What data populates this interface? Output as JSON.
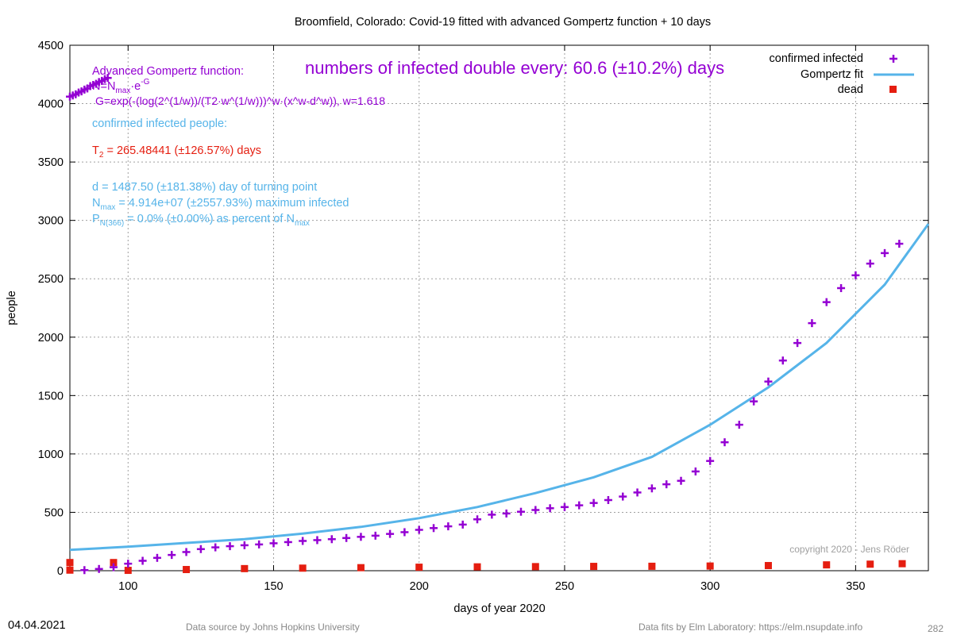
{
  "chart_data": {
    "type": "line",
    "title": "Broomfield,  Colorado: Covid-19 fitted with advanced Gompertz function + 10 days",
    "xlabel": "days of year 2020",
    "ylabel": "people",
    "xlim": [
      80,
      375
    ],
    "ylim": [
      0,
      4500
    ],
    "x_ticks": [
      100,
      150,
      200,
      250,
      300,
      350
    ],
    "y_ticks": [
      0,
      500,
      1000,
      1500,
      2000,
      2500,
      3000,
      3500,
      4000,
      4500
    ],
    "grid": true,
    "legend_position": "top-right",
    "legend": [
      {
        "label": "confirmed infected",
        "marker": "+",
        "color": "#9400d3"
      },
      {
        "label": "Gompertz fit",
        "marker": "line",
        "color": "#56b4e9"
      },
      {
        "label": "dead",
        "marker": "square",
        "color": "#e51e10"
      }
    ],
    "series": [
      {
        "name": "confirmed infected",
        "color": "#9400d3",
        "marker": "+",
        "points": [
          [
            80,
            4060
          ],
          [
            81,
            4070
          ],
          [
            82,
            4080
          ],
          [
            83,
            4095
          ],
          [
            84,
            4105
          ],
          [
            85,
            4120
          ],
          [
            86,
            4130
          ],
          [
            87,
            4150
          ],
          [
            88,
            4160
          ],
          [
            89,
            4170
          ],
          [
            90,
            4185
          ],
          [
            91,
            4195
          ],
          [
            92,
            4210
          ],
          [
            93,
            4220
          ],
          [
            85,
            5
          ],
          [
            90,
            15
          ],
          [
            95,
            30
          ],
          [
            100,
            60
          ],
          [
            105,
            85
          ],
          [
            110,
            110
          ],
          [
            115,
            135
          ],
          [
            120,
            160
          ],
          [
            125,
            185
          ],
          [
            130,
            200
          ],
          [
            135,
            210
          ],
          [
            140,
            218
          ],
          [
            145,
            225
          ],
          [
            150,
            235
          ],
          [
            155,
            245
          ],
          [
            160,
            255
          ],
          [
            165,
            262
          ],
          [
            170,
            270
          ],
          [
            175,
            280
          ],
          [
            180,
            290
          ],
          [
            185,
            300
          ],
          [
            190,
            315
          ],
          [
            195,
            330
          ],
          [
            200,
            350
          ],
          [
            205,
            365
          ],
          [
            210,
            380
          ],
          [
            215,
            395
          ],
          [
            220,
            440
          ],
          [
            225,
            480
          ],
          [
            230,
            490
          ],
          [
            235,
            505
          ],
          [
            240,
            520
          ],
          [
            245,
            535
          ],
          [
            250,
            545
          ],
          [
            255,
            560
          ],
          [
            260,
            580
          ],
          [
            265,
            605
          ],
          [
            270,
            635
          ],
          [
            275,
            670
          ],
          [
            280,
            705
          ],
          [
            285,
            740
          ],
          [
            290,
            770
          ],
          [
            295,
            850
          ],
          [
            300,
            940
          ],
          [
            305,
            1100
          ],
          [
            310,
            1250
          ],
          [
            315,
            1450
          ],
          [
            320,
            1620
          ],
          [
            325,
            1800
          ],
          [
            330,
            1950
          ],
          [
            335,
            2120
          ],
          [
            340,
            2300
          ],
          [
            345,
            2420
          ],
          [
            350,
            2530
          ],
          [
            355,
            2630
          ],
          [
            360,
            2720
          ],
          [
            365,
            2800
          ]
        ]
      },
      {
        "name": "Gompertz fit",
        "color": "#56b4e9",
        "function": "Gompertz",
        "points": [
          [
            80,
            178
          ],
          [
            100,
            205
          ],
          [
            120,
            238
          ],
          [
            140,
            270
          ],
          [
            160,
            318
          ],
          [
            180,
            375
          ],
          [
            200,
            450
          ],
          [
            220,
            545
          ],
          [
            240,
            665
          ],
          [
            260,
            800
          ],
          [
            280,
            975
          ],
          [
            300,
            1250
          ],
          [
            320,
            1570
          ],
          [
            340,
            1950
          ],
          [
            360,
            2450
          ],
          [
            375,
            2970
          ]
        ]
      },
      {
        "name": "dead",
        "color": "#e51e10",
        "marker": "square",
        "points": [
          [
            80,
            70
          ],
          [
            95,
            70
          ],
          [
            80,
            5
          ],
          [
            100,
            3
          ],
          [
            120,
            10
          ],
          [
            140,
            18
          ],
          [
            160,
            22
          ],
          [
            180,
            26
          ],
          [
            200,
            30
          ],
          [
            220,
            33
          ],
          [
            240,
            35
          ],
          [
            260,
            37
          ],
          [
            280,
            38
          ],
          [
            300,
            40
          ],
          [
            320,
            44
          ],
          [
            340,
            50
          ],
          [
            355,
            56
          ],
          [
            366,
            60
          ]
        ]
      }
    ],
    "annotations": {
      "doubling": "numbers of infected double every: 60.6 (±10.2%) days",
      "adv_title": "Advanced Gompertz function:",
      "n_formula": "N=N",
      "n_sub": "max",
      "n_mid": "·e",
      "n_sup": "-G",
      "g_formula": "G=exp(-(log(2^(1/w))/(T2·w^(1/w)))^w·(x^w-d^w)), w=1.618",
      "confirmed_heading": "confirmed infected people:",
      "t2_label": "T",
      "t2_sub": "2",
      "t2_value": " = 265.48441 (±126.57%) days",
      "d_line": "d = 1487.50 (±181.38%) day of turning point",
      "nmax_label": "N",
      "nmax_sub": "max",
      "nmax_value": " = 4.914e+07 (±2557.93%) maximum infected",
      "p_label": "P",
      "p_sub": "N(366)",
      "p_value": " = 0.0% (±0.00%) as percent of N",
      "p_sub2": "max",
      "copyright": "copyright 2020 - Jens Röder"
    }
  },
  "footer": {
    "date": "04.04.2021",
    "source": "Data source by Johns Hopkins University",
    "fits": "Data fits by Elm Laboratory: https://elm.nsupdate.info",
    "page_number": "282"
  },
  "colors": {
    "purple": "#9400d3",
    "blue": "#56b4e9",
    "red": "#e51e10",
    "grid": "#a0a0a0",
    "text": "#000000",
    "copyright": "#a0a0a0",
    "footer_gray": "#888888"
  }
}
